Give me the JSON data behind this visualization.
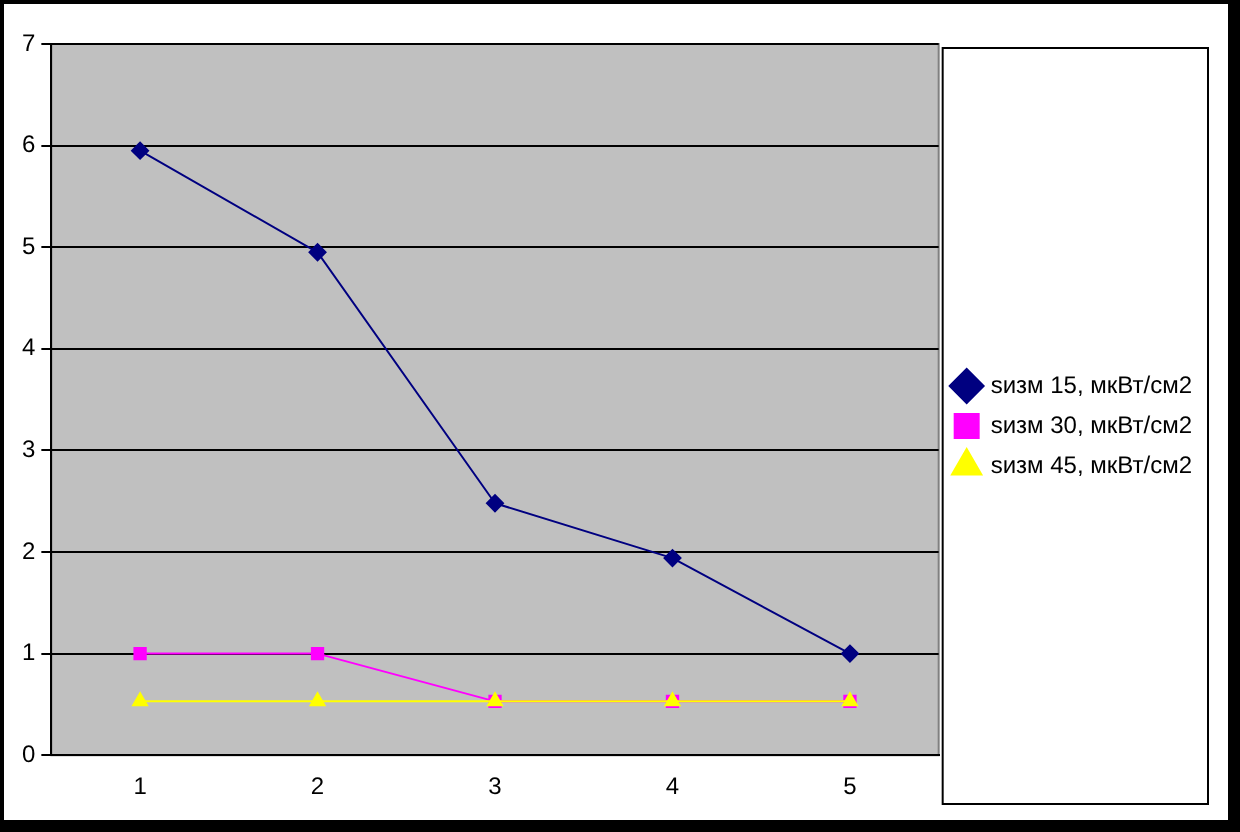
{
  "chart_data": {
    "type": "line",
    "categories": [
      "1",
      "2",
      "3",
      "4",
      "5"
    ],
    "series": [
      {
        "name": "sизм 15, мкВт/см2",
        "color": "#000080",
        "values": [
          5.95,
          4.95,
          2.48,
          1.94,
          1.0
        ],
        "marker": "diamond"
      },
      {
        "name": "sизм 30, мкВт/см2",
        "color": "#ff00ff",
        "values": [
          1.0,
          1.0,
          0.53,
          0.53,
          0.53
        ],
        "marker": "square"
      },
      {
        "name": "sизм 45, мкВт/см2",
        "color": "#ffff00",
        "values": [
          0.53,
          0.53,
          0.53,
          0.53,
          0.53
        ],
        "marker": "triangle"
      }
    ],
    "ylim": [
      0,
      7
    ],
    "yticks": [
      0,
      1,
      2,
      3,
      4,
      5,
      6,
      7
    ],
    "grid": "y",
    "legend": "right"
  }
}
